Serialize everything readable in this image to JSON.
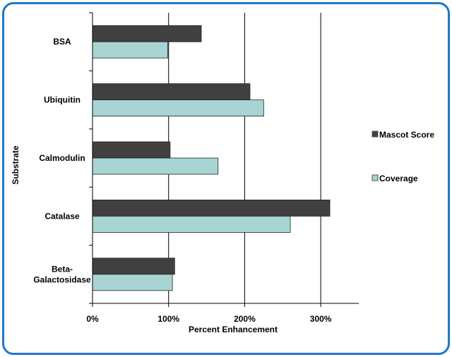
{
  "chart_data": {
    "type": "bar",
    "orientation": "horizontal",
    "categories": [
      "BSA",
      "Ubiquitin",
      "Calmodulin",
      "Catalase",
      "Beta-\nGalactosidase"
    ],
    "series": [
      {
        "name": "Mascot Score",
        "values": [
          143,
          207,
          102,
          312,
          108
        ],
        "color": "#404040"
      },
      {
        "name": "Coverage",
        "values": [
          99,
          225,
          165,
          260,
          105
        ],
        "color": "#a8d4d4"
      }
    ],
    "xlabel": "Percent Enhancement",
    "ylabel": "Substrate",
    "xlim": [
      0,
      350
    ],
    "xticks": [
      {
        "value": 0,
        "label": "0%"
      },
      {
        "value": 100,
        "label": "100%"
      },
      {
        "value": 200,
        "label": "200%"
      },
      {
        "value": 300,
        "label": "300%"
      }
    ],
    "grid": "vertical",
    "legend_position": "right",
    "frame_color": "#1f78c8"
  }
}
